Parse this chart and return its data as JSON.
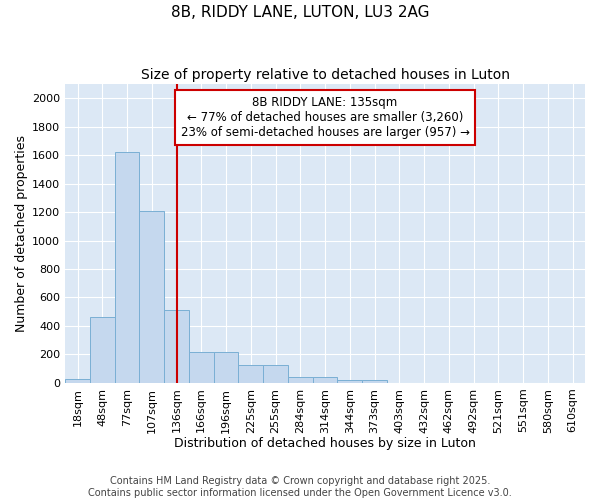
{
  "title": "8B, RIDDY LANE, LUTON, LU3 2AG",
  "subtitle": "Size of property relative to detached houses in Luton",
  "xlabel": "Distribution of detached houses by size in Luton",
  "ylabel": "Number of detached properties",
  "categories": [
    "18sqm",
    "48sqm",
    "77sqm",
    "107sqm",
    "136sqm",
    "166sqm",
    "196sqm",
    "225sqm",
    "255sqm",
    "284sqm",
    "314sqm",
    "344sqm",
    "373sqm",
    "403sqm",
    "432sqm",
    "462sqm",
    "492sqm",
    "521sqm",
    "551sqm",
    "580sqm",
    "610sqm"
  ],
  "values": [
    30,
    460,
    1620,
    1210,
    510,
    215,
    215,
    125,
    125,
    40,
    40,
    18,
    18,
    0,
    0,
    0,
    0,
    0,
    0,
    0,
    0
  ],
  "bar_color": "#c5d8ee",
  "bar_edge_color": "#7aafd4",
  "vline_x_index": 4,
  "vline_color": "#cc0000",
  "annotation_text_line1": "8B RIDDY LANE: 135sqm",
  "annotation_text_line2": "← 77% of detached houses are smaller (3,260)",
  "annotation_text_line3": "23% of semi-detached houses are larger (957) →",
  "annotation_box_color": "#ffffff",
  "annotation_edge_color": "#cc0000",
  "ylim": [
    0,
    2100
  ],
  "yticks": [
    0,
    200,
    400,
    600,
    800,
    1000,
    1200,
    1400,
    1600,
    1800,
    2000
  ],
  "fig_background_color": "#ffffff",
  "plot_background_color": "#dce8f5",
  "grid_color": "#ffffff",
  "footer_line1": "Contains HM Land Registry data © Crown copyright and database right 2025.",
  "footer_line2": "Contains public sector information licensed under the Open Government Licence v3.0.",
  "title_fontsize": 11,
  "subtitle_fontsize": 10,
  "axis_label_fontsize": 9,
  "tick_fontsize": 8,
  "annotation_fontsize": 8.5,
  "footer_fontsize": 7
}
